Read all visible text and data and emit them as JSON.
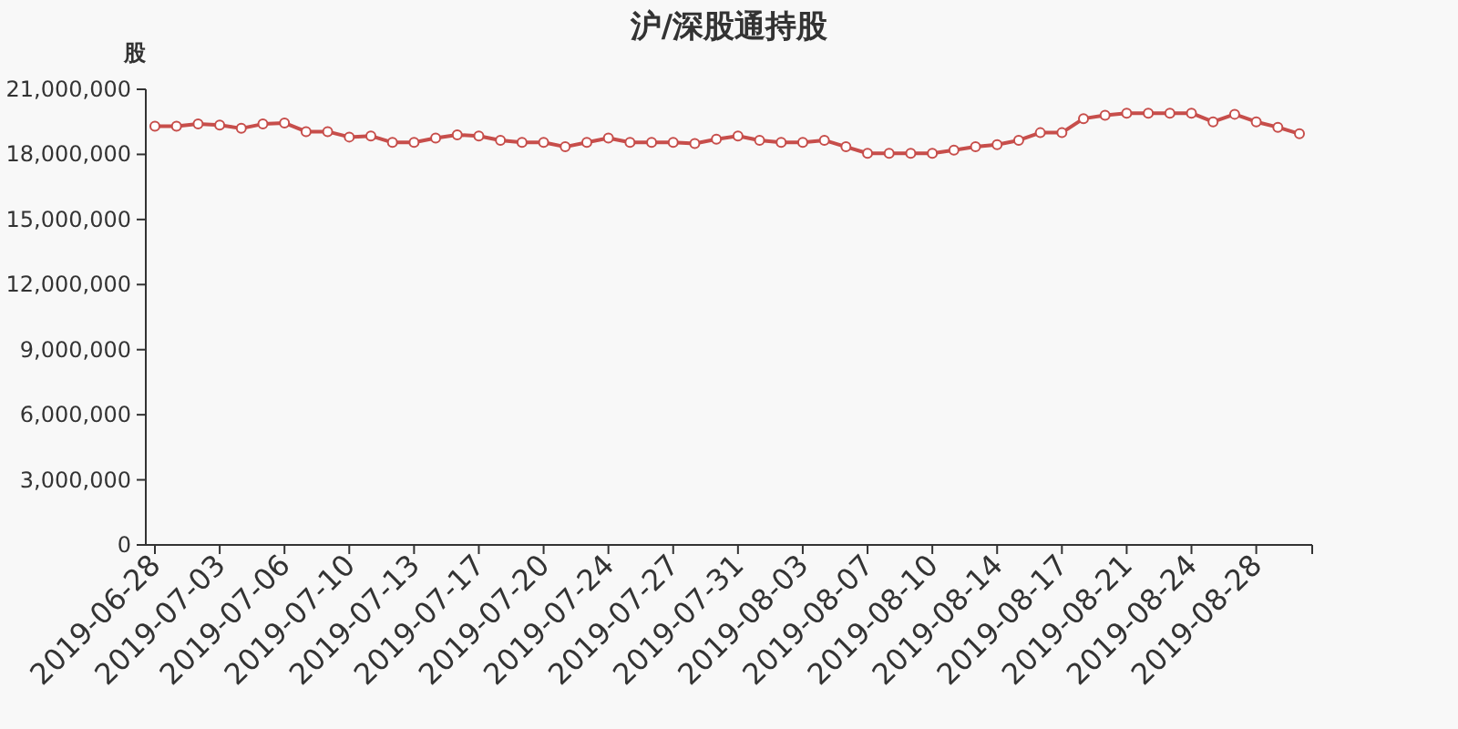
{
  "chart_data": {
    "type": "line",
    "title": "沪/深股通持股",
    "ylabel": "股",
    "categories": [
      "2019-06-28",
      null,
      null,
      "2019-07-03",
      null,
      null,
      "2019-07-06",
      null,
      null,
      "2019-07-10",
      null,
      null,
      "2019-07-13",
      null,
      null,
      "2019-07-17",
      null,
      null,
      "2019-07-20",
      null,
      null,
      "2019-07-24",
      null,
      null,
      "2019-07-27",
      null,
      null,
      "2019-07-31",
      null,
      null,
      "2019-08-03",
      null,
      null,
      "2019-08-07",
      null,
      null,
      "2019-08-10",
      null,
      null,
      "2019-08-14",
      null,
      null,
      "2019-08-17",
      null,
      null,
      "2019-08-21",
      null,
      null,
      "2019-08-24",
      null,
      null,
      "2019-08-28",
      null,
      null
    ],
    "series": [
      {
        "color": "#c74e4b",
        "values": [
          19300000,
          19300000,
          19400000,
          19350000,
          19200000,
          19400000,
          19450000,
          19050000,
          19050000,
          18800000,
          18850000,
          18550000,
          18550000,
          18750000,
          18900000,
          18850000,
          18650000,
          18550000,
          18550000,
          18350000,
          18550000,
          18750000,
          18550000,
          18550000,
          18550000,
          18500000,
          18700000,
          18850000,
          18650000,
          18550000,
          18550000,
          18650000,
          18350000,
          18050000,
          18050000,
          18050000,
          18050000,
          18200000,
          18350000,
          18450000,
          18650000,
          19000000,
          19000000,
          19650000,
          19800000,
          19900000,
          19900000,
          19900000,
          19900000,
          19500000,
          19850000,
          19500000,
          19250000,
          18950000
        ]
      }
    ],
    "ylim": [
      0,
      21000000
    ],
    "yticks": [
      {
        "value": 0,
        "label": "0"
      },
      {
        "value": 3000000,
        "label": "3,000,000"
      },
      {
        "value": 6000000,
        "label": "6,000,000"
      },
      {
        "value": 9000000,
        "label": "9,000,000"
      },
      {
        "value": 12000000,
        "label": "12,000,000"
      },
      {
        "value": 15000000,
        "label": "15,000,000"
      },
      {
        "value": 18000000,
        "label": "18,000,000"
      },
      {
        "value": 21000000,
        "label": "21,000,000"
      }
    ],
    "marker": "circle",
    "line_style": "solid",
    "grid": false
  }
}
